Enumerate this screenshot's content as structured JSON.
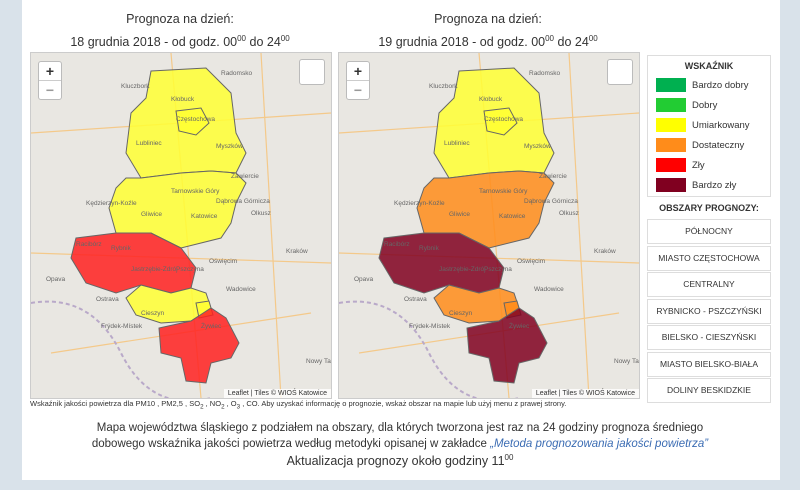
{
  "maps": [
    {
      "heading": "Prognoza na dzień:",
      "date": [
        "18 grudnia 2018 - od godz. 00",
        "00",
        "do 24",
        "00"
      ],
      "region_colors": [
        "#ffff33",
        "#ffff33",
        "#ffff33",
        "#ff2020",
        "#ffff33",
        "#ffff33",
        "#ff2020"
      ],
      "attribution": "Leaflet | Tiles © WIOŚ Katowice"
    },
    {
      "heading": "Prognoza na dzień:",
      "date": [
        "19 grudnia 2018 - od godz. 00",
        "00",
        "do 24",
        "00"
      ],
      "region_colors": [
        "#ffff33",
        "#ffff33",
        "#ff8c1a",
        "#800020",
        "#ff8c1a",
        "#ff8c1a",
        "#800020"
      ],
      "attribution": "Leaflet | Tiles © WIOŚ Katowice"
    }
  ],
  "zoom": [
    "+",
    "−"
  ],
  "place_labels": [
    "Kluczbork",
    "Radomsko",
    "Kłobuck",
    "Częstochowa",
    "Lubliniec",
    "Myszków",
    "Tarnowskie Góry",
    "Zawiercie",
    "Kędzierzyn-Koźle",
    "Gliwice",
    "Katowice",
    "Dąbrowa Górnicza",
    "Olkusz",
    "Racibórz",
    "Rybnik",
    "Jastrzębie-Zdrój",
    "Pszczyna",
    "Oświęcim",
    "Kraków",
    "Opava",
    "Ostrava",
    "Wadowice",
    "Frýdek-Místek",
    "Cieszyn",
    "Żywiec",
    "Nowy Targ"
  ],
  "legend": {
    "title": "WSKAŹNIK",
    "items": [
      {
        "label": "Bardzo dobry",
        "color": "#00b050"
      },
      {
        "label": "Dobry",
        "color": "#22cc33"
      },
      {
        "label": "Umiarkowany",
        "color": "#ffff00"
      },
      {
        "label": "Dostateczny",
        "color": "#ff8c1a"
      },
      {
        "label": "Zły",
        "color": "#ff0000"
      },
      {
        "label": "Bardzo zły",
        "color": "#800020"
      }
    ]
  },
  "areas": {
    "title": "OBSZARY PROGNOZY:",
    "items": [
      "PÓŁNOCNY",
      "MIASTO CZĘSTOCHOWA",
      "CENTRALNY",
      "RYBNICKO - PSZCZYŃSKI",
      "BIELSKO - CIESZYŃSKI",
      "MIASTO BIELSKO-BIAŁA",
      "DOLINY BESKIDZKIE"
    ]
  },
  "footnote": [
    "Wskaźnik jakości powietrza dla PM10 , PM2,5 , SO",
    "2",
    " , NO",
    "2",
    " , O",
    "3",
    " , CO. Aby uzyskać informację o prognozie, wskaż obszar na mapie lub użyj menu z prawej strony."
  ],
  "description": {
    "text": "Mapa województwa śląskiego z podziałem na obszary, dla których tworzona jest raz na 24 godziny prognoza średniego dobowego wskaźnika jakości powietrza według metodyki opisanej w zakładce",
    "link": "„Metoda prognozowania jakości powietrza”"
  },
  "update": [
    "Aktualizacja prognozy około godziny 11",
    "00"
  ]
}
